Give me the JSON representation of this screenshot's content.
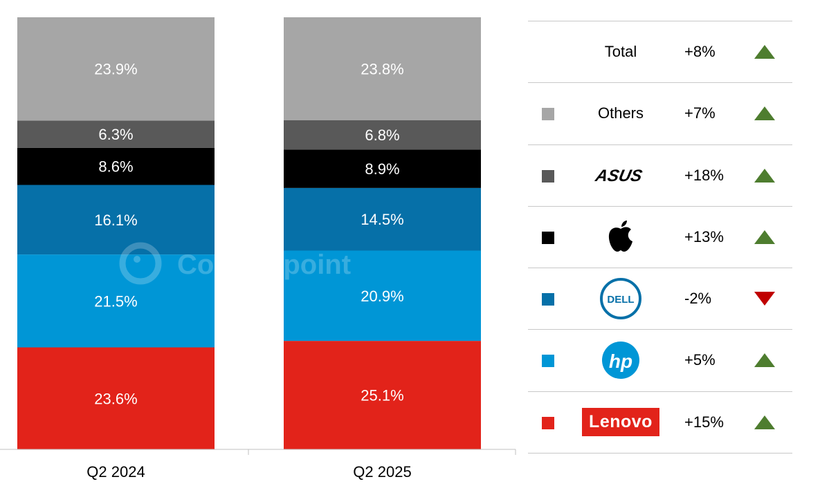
{
  "chart_data": {
    "type": "bar",
    "stacked": true,
    "categories": [
      "Q2 2024",
      "Q2 2025"
    ],
    "ylim": [
      0,
      100
    ],
    "series": [
      {
        "name": "Lenovo",
        "color": "#e2231a",
        "values": [
          23.6,
          25.1
        ],
        "labels": [
          "23.6%",
          "25.1%"
        ]
      },
      {
        "name": "HP",
        "color": "#0096d6",
        "values": [
          21.5,
          20.9
        ],
        "labels": [
          "21.5%",
          "20.9%"
        ]
      },
      {
        "name": "Dell",
        "color": "#0670a8",
        "values": [
          16.1,
          14.5
        ],
        "labels": [
          "16.1%",
          "14.5%"
        ]
      },
      {
        "name": "Apple",
        "color": "#000000",
        "values": [
          8.6,
          8.9
        ],
        "labels": [
          "8.6%",
          "8.9%"
        ]
      },
      {
        "name": "ASUS",
        "color": "#595959",
        "values": [
          6.3,
          6.8
        ],
        "labels": [
          "6.3%",
          "6.8%"
        ]
      },
      {
        "name": "Others",
        "color": "#a6a6a6",
        "values": [
          23.9,
          23.8
        ],
        "labels": [
          "23.9%",
          "23.8%"
        ]
      }
    ],
    "watermark": "Counterpoint"
  },
  "legend": {
    "rows": [
      {
        "brand": "Total",
        "growth": "+8%",
        "trend": "up",
        "swatch": null,
        "icon": "total-label"
      },
      {
        "brand": "Others",
        "growth": "+7%",
        "trend": "up",
        "swatch": "#a6a6a6",
        "icon": "others-label"
      },
      {
        "brand": "ASUS",
        "growth": "+18%",
        "trend": "up",
        "swatch": "#595959",
        "icon": "asus-logo-icon"
      },
      {
        "brand": "Apple",
        "growth": "+13%",
        "trend": "up",
        "swatch": "#000000",
        "icon": "apple-logo-icon"
      },
      {
        "brand": "Dell",
        "growth": "-2%",
        "trend": "down",
        "swatch": "#0670a8",
        "icon": "dell-logo-icon"
      },
      {
        "brand": "HP",
        "growth": "+5%",
        "trend": "up",
        "swatch": "#0096d6",
        "icon": "hp-logo-icon"
      },
      {
        "brand": "Lenovo",
        "growth": "+15%",
        "trend": "up",
        "swatch": "#e2231a",
        "icon": "lenovo-logo-icon"
      }
    ],
    "up_color": "#4e7d2f",
    "down_color": "#c00000"
  }
}
